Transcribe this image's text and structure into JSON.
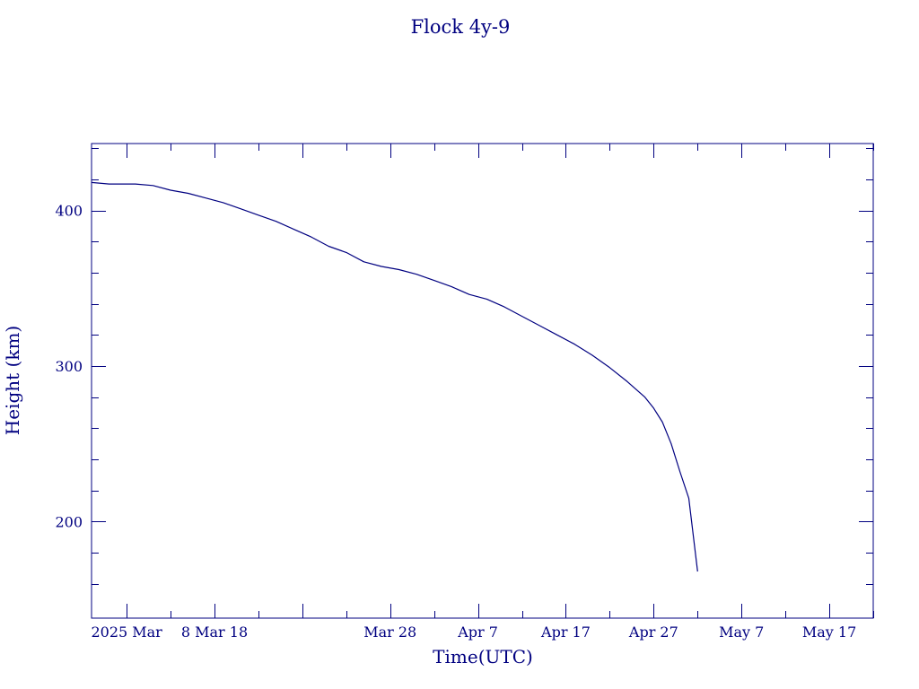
{
  "chart_data": {
    "type": "line",
    "title": "Flock 4y-9",
    "xlabel": "Time(UTC)",
    "ylabel": "Height (km)",
    "line_color": "#000080",
    "xlim": [
      "2025-02-22",
      "2025-05-22"
    ],
    "ylim": [
      138,
      443
    ],
    "x_ticks": [
      {
        "date": "2025-02-26",
        "label": "2025 Mar"
      },
      {
        "date": "2025-03-08",
        "label": "8 Mar 18"
      },
      {
        "date": "2025-03-28",
        "label": "Mar 28"
      },
      {
        "date": "2025-04-07",
        "label": "Apr  7"
      },
      {
        "date": "2025-04-17",
        "label": "Apr 17"
      },
      {
        "date": "2025-04-27",
        "label": "Apr 27"
      },
      {
        "date": "2025-05-07",
        "label": "May  7"
      },
      {
        "date": "2025-05-17",
        "label": "May 17"
      }
    ],
    "x_major_tick_dates": [
      "2025-02-26",
      "2025-03-08",
      "2025-03-18",
      "2025-03-28",
      "2025-04-07",
      "2025-04-17",
      "2025-04-27",
      "2025-05-07",
      "2025-05-17"
    ],
    "x_minor_tick_dates": [
      "2025-03-03",
      "2025-03-13",
      "2025-03-23",
      "2025-04-02",
      "2025-04-12",
      "2025-04-22",
      "2025-05-02",
      "2025-05-12",
      "2025-05-22"
    ],
    "y_ticks": [
      200,
      300,
      400
    ],
    "y_minor_ticks": [
      160,
      180,
      220,
      240,
      260,
      280,
      320,
      340,
      360,
      380,
      420,
      440
    ],
    "series": [
      {
        "x": [
          "2025-02-22",
          "2025-02-24",
          "2025-02-27",
          "2025-03-01",
          "2025-03-03",
          "2025-03-05",
          "2025-03-07",
          "2025-03-09",
          "2025-03-11",
          "2025-03-13",
          "2025-03-15",
          "2025-03-17",
          "2025-03-19",
          "2025-03-21",
          "2025-03-23",
          "2025-03-25",
          "2025-03-27",
          "2025-03-29",
          "2025-03-31",
          "2025-04-02",
          "2025-04-04",
          "2025-04-06",
          "2025-04-08",
          "2025-04-10",
          "2025-04-12",
          "2025-04-14",
          "2025-04-16",
          "2025-04-18",
          "2025-04-20",
          "2025-04-22",
          "2025-04-24",
          "2025-04-26",
          "2025-04-27",
          "2025-04-28",
          "2025-04-29",
          "2025-04-30",
          "2025-05-01",
          "2025-05-02"
        ],
        "y": [
          418,
          417,
          417,
          416,
          413,
          411,
          408,
          405,
          401,
          397,
          393,
          388,
          383,
          377,
          373,
          367,
          364,
          362,
          359,
          355,
          351,
          346,
          343,
          338,
          332,
          326,
          320,
          314,
          307,
          299,
          290,
          280,
          273,
          264,
          250,
          232,
          215,
          168
        ]
      }
    ]
  }
}
